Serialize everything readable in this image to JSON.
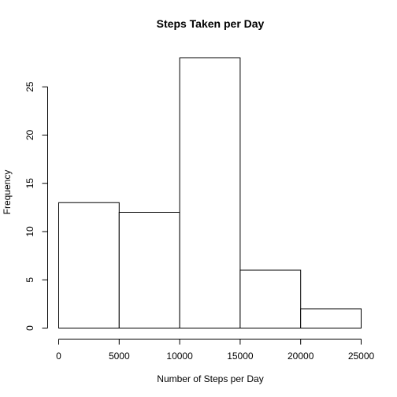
{
  "chart_data": {
    "type": "bar",
    "title": "Steps Taken per Day",
    "xlabel": "Number of Steps per Day",
    "ylabel": "Frequency",
    "bins": [
      {
        "from": 0,
        "to": 5000,
        "count": 13
      },
      {
        "from": 5000,
        "to": 10000,
        "count": 12
      },
      {
        "from": 10000,
        "to": 15000,
        "count": 28
      },
      {
        "from": 15000,
        "to": 20000,
        "count": 6
      },
      {
        "from": 20000,
        "to": 25000,
        "count": 2
      }
    ],
    "xlim": [
      0,
      25000
    ],
    "ylim": [
      0,
      28
    ],
    "x_ticks": [
      0,
      5000,
      10000,
      15000,
      20000,
      25000
    ],
    "x_tick_labels": [
      "0",
      "5000",
      "10000",
      "15000",
      "20000",
      "25000"
    ],
    "y_ticks": [
      0,
      5,
      10,
      15,
      20,
      25
    ],
    "y_tick_labels": [
      "0",
      "5",
      "10",
      "15",
      "20",
      "25"
    ],
    "grid": false,
    "bar_fill": "#ffffff",
    "bar_stroke": "#000000"
  }
}
